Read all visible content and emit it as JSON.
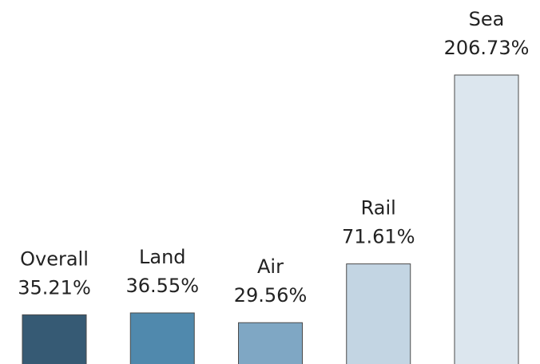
{
  "chart_data": {
    "type": "bar",
    "categories": [
      "Overall",
      "Land",
      "Air",
      "Rail",
      "Sea"
    ],
    "values": [
      35.21,
      36.55,
      29.56,
      71.61,
      206.73
    ],
    "value_labels": [
      "35.21%",
      "36.55%",
      "29.56%",
      "71.61%",
      "206.73%"
    ],
    "colors": [
      "#365a74",
      "#5089ad",
      "#7fa7c4",
      "#c3d5e3",
      "#dce6ee"
    ]
  }
}
